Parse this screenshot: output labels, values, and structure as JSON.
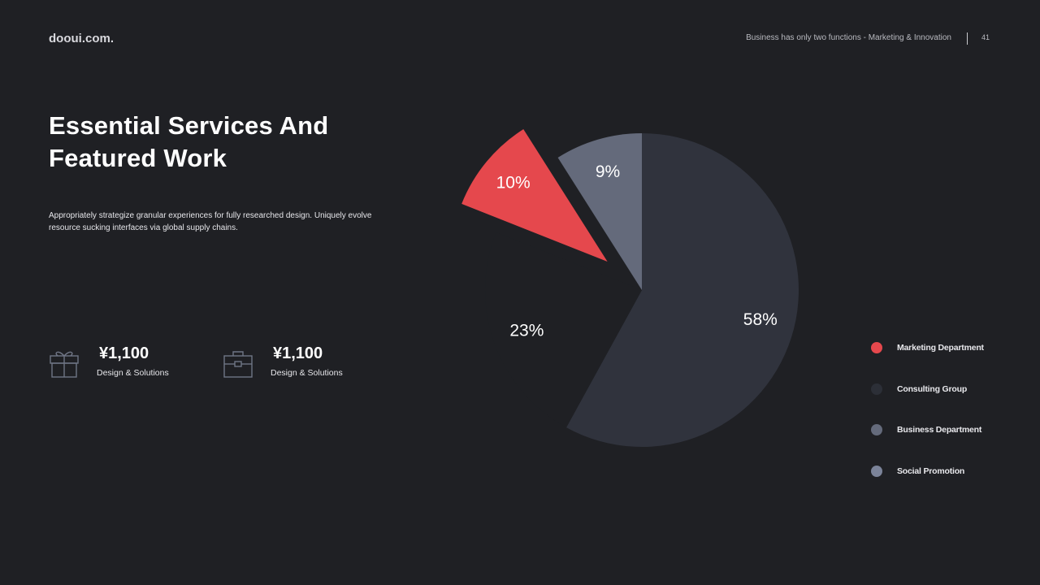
{
  "header": {
    "brand": "dooui.com.",
    "tagline": "Business has only two functions - Marketing & Innovation",
    "page_number": "41"
  },
  "title": "Essential Services And Featured Work",
  "description": "Appropriately strategize granular experiences for fully researched design. Uniquely evolve resource sucking interfaces via global supply chains.",
  "stats": [
    {
      "icon": "gift-icon",
      "value": "¥1,100",
      "label": "Design & Solutions"
    },
    {
      "icon": "briefcase-icon",
      "value": "¥1,100",
      "label": "Design & Solutions"
    }
  ],
  "colors": {
    "background": "#1f2024",
    "accent": "#e5484d"
  },
  "chart_data": {
    "type": "pie",
    "start_angle_deg": 0,
    "slices": [
      {
        "name": "Consulting Group",
        "value": 58,
        "label": "58%",
        "color": "#30333d",
        "exploded": false
      },
      {
        "name": "Marketing Department",
        "value": 23,
        "label": "23%",
        "color": "#1f2024",
        "exploded": false
      },
      {
        "name": "Marketing Department",
        "value": 10,
        "label": "10%",
        "color": "#e5484d",
        "exploded": true
      },
      {
        "name": "Business Department",
        "value": 9,
        "label": "9%",
        "color": "#646a7b",
        "exploded": false
      }
    ],
    "legend": [
      {
        "label": "Marketing Department",
        "color": "#e5484d"
      },
      {
        "label": "Consulting Group",
        "color": "#2c2f37"
      },
      {
        "label": "Business Department",
        "color": "#646a7b"
      },
      {
        "label": "Social Promotion",
        "color": "#7b8399"
      }
    ],
    "legend_position": "right"
  }
}
